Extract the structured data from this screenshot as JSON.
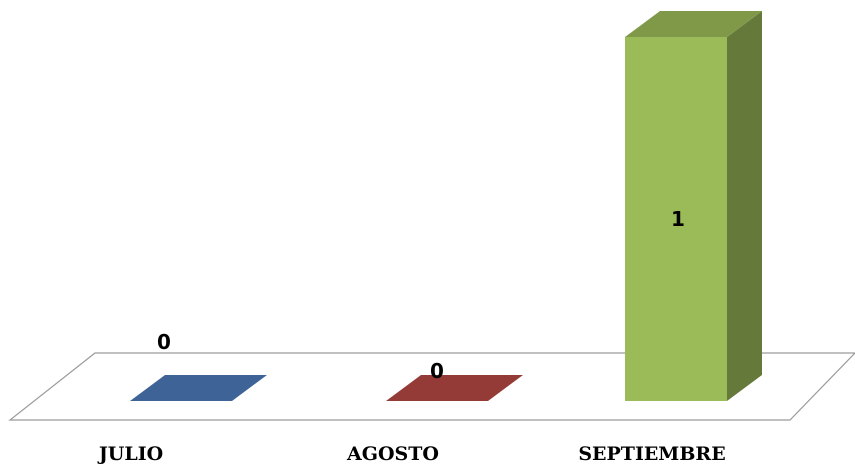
{
  "chart_data": {
    "type": "bar",
    "categories": [
      "JULIO",
      "AGOSTO",
      "SEPTIEMBRE"
    ],
    "values": [
      0,
      0,
      1
    ],
    "value_labels": [
      "0",
      "0",
      "1"
    ],
    "title": "",
    "xlabel": "",
    "ylabel": "",
    "ylim": [
      0,
      1
    ],
    "grid": false,
    "legend": "none",
    "style": "3d-column",
    "colors": [
      "#3E6396",
      "#943B38",
      "#9BBB59"
    ]
  }
}
